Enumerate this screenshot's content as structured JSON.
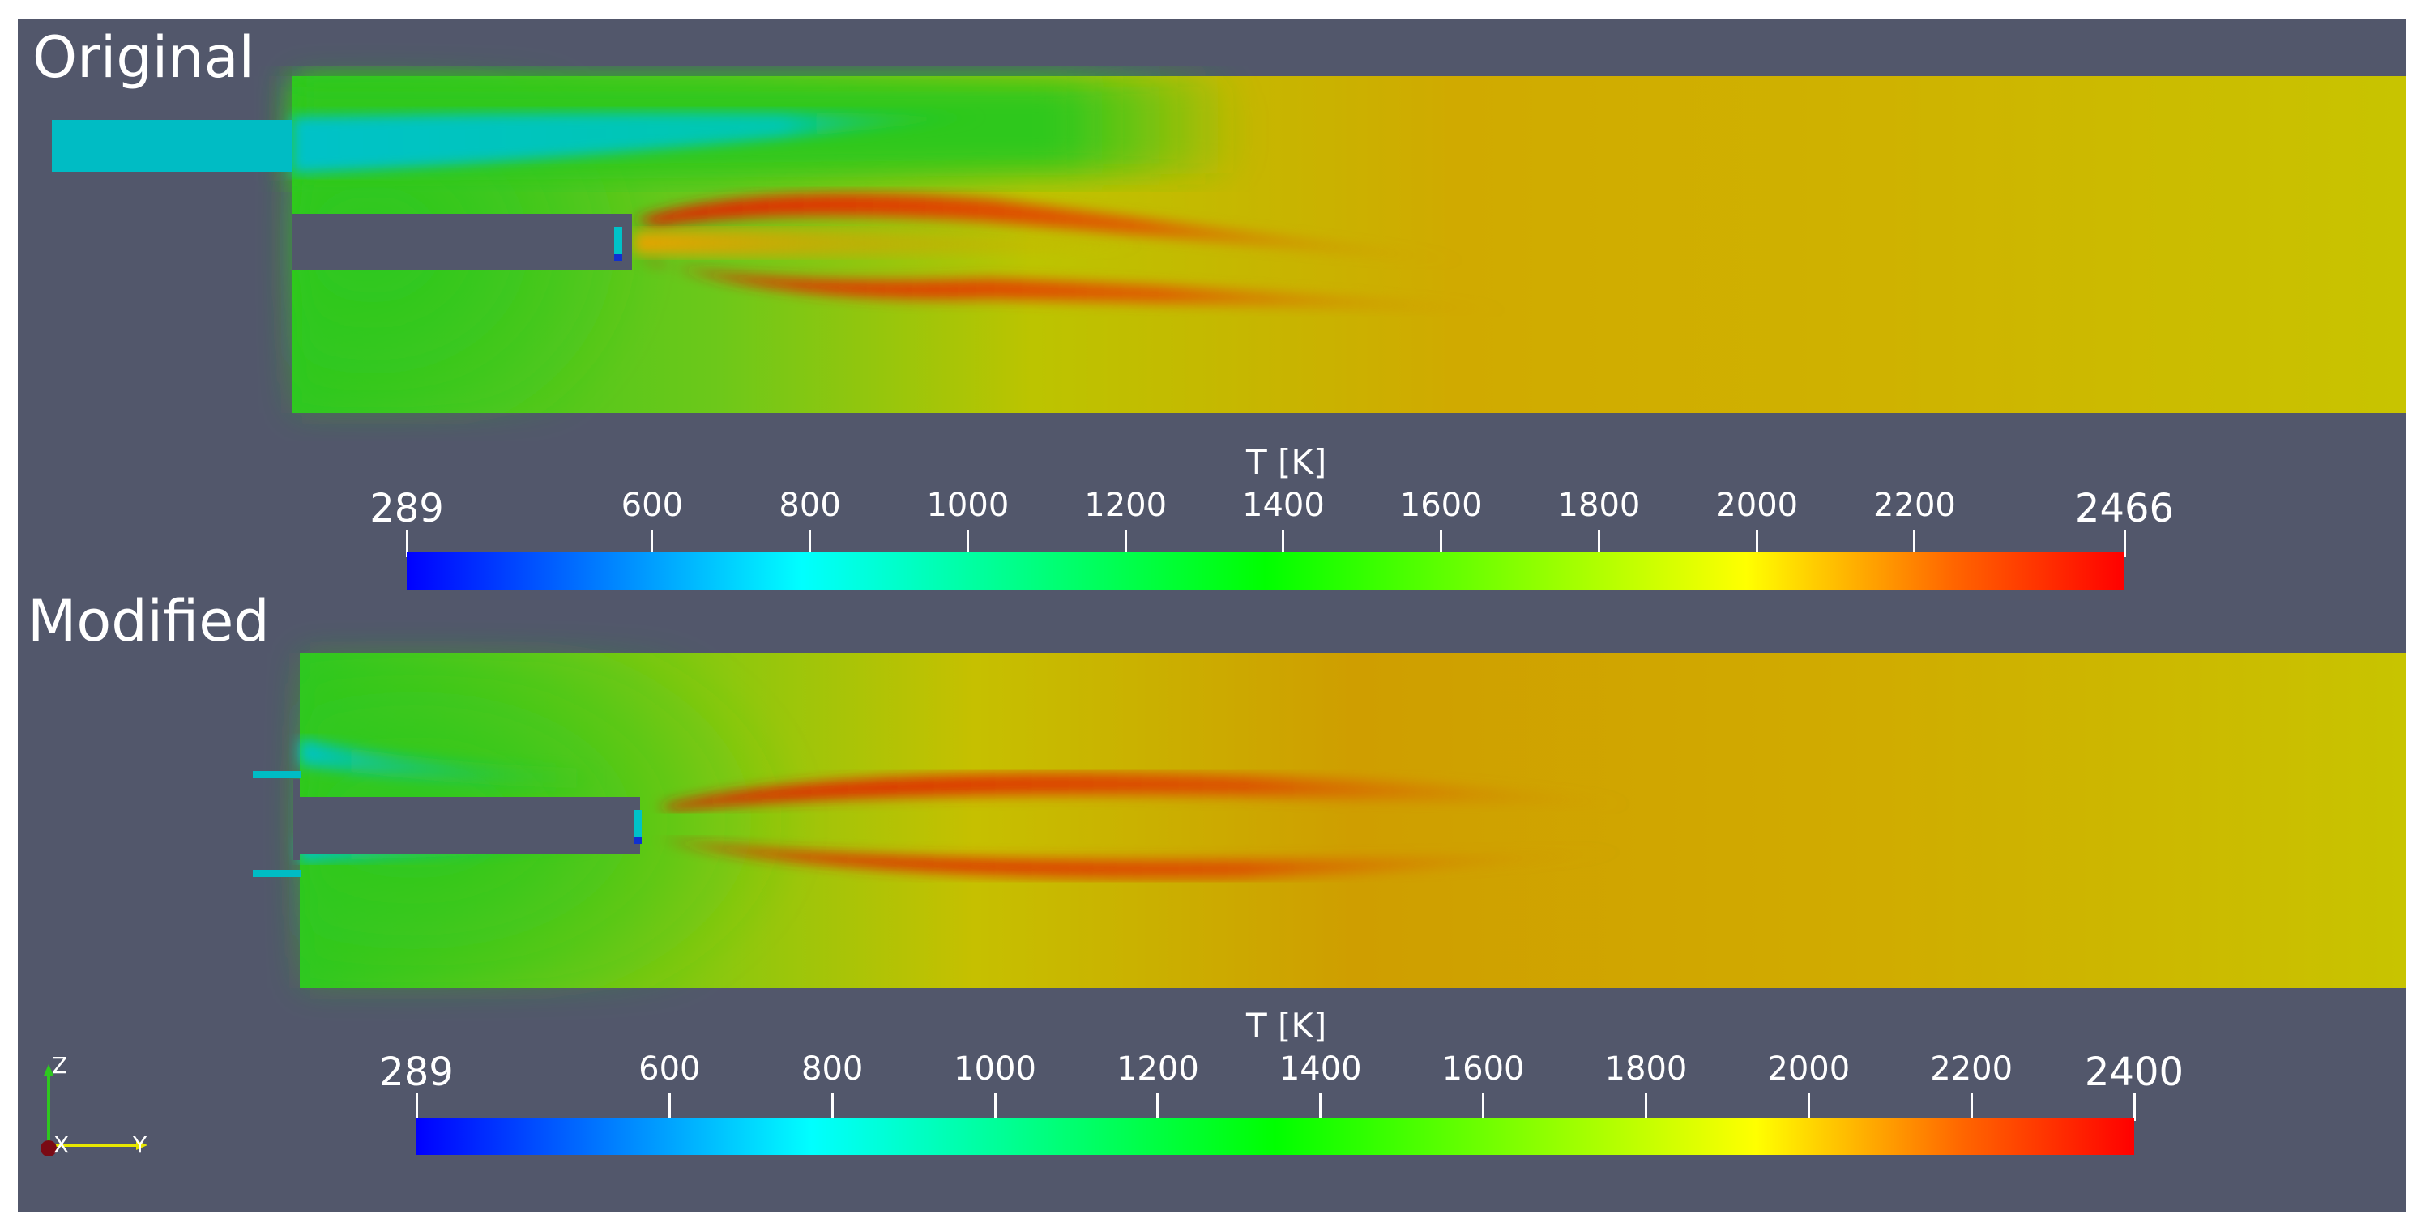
{
  "panels": {
    "top": {
      "label": "Original"
    },
    "bottom": {
      "label": "Modified"
    }
  },
  "colorbars": {
    "top": {
      "title": "T [K]",
      "ticks": [
        "289",
        "600",
        "800",
        "1000",
        "1200",
        "1400",
        "1600",
        "1800",
        "2000",
        "2200",
        "2466"
      ],
      "values": [
        289,
        600,
        800,
        1000,
        1200,
        1400,
        1600,
        1800,
        2000,
        2200,
        2466
      ],
      "range": [
        289,
        2466
      ]
    },
    "bottom": {
      "title": "T [K]",
      "ticks": [
        "289",
        "600",
        "800",
        "1000",
        "1200",
        "1400",
        "1600",
        "1800",
        "2000",
        "2200",
        "2400"
      ],
      "values": [
        289,
        600,
        800,
        1000,
        1200,
        1400,
        1600,
        1800,
        2000,
        2200,
        2400
      ],
      "range": [
        289,
        2400
      ]
    }
  },
  "axes": {
    "z": "Z",
    "x": "X",
    "y": "Y"
  },
  "colors": {
    "background": "#52576b",
    "cool": "#00c8c8",
    "green": "#2ec81e",
    "yellow": "#c8c200",
    "orange": "#cf9a00",
    "red": "#e02000"
  }
}
